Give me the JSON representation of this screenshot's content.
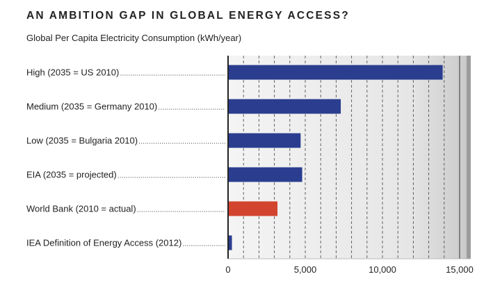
{
  "header": {
    "title": "AN AMBITION GAP IN GLOBAL ENERGY ACCESS?",
    "subtitle": "Global Per Capita Electricity Consumption (kWh/year)"
  },
  "colors": {
    "bar_default": "#2a3d8f",
    "bar_highlight": "#d2442e",
    "panel_bg": "#dcdcdc",
    "gridline": "#555555"
  },
  "chart_data": {
    "type": "bar",
    "orientation": "horizontal",
    "title": "AN AMBITION GAP IN GLOBAL ENERGY ACCESS?",
    "subtitle": "Global Per Capita Electricity Consumption (kWh/year)",
    "categories": [
      "High (2035 = US 2010)",
      "Medium (2035 = Germany 2010)",
      "Low (2035 = Bulgaria 2010)",
      "EIA (2035 = projected)",
      "World Bank (2010 = actual)",
      "IEA Definition of Energy Access (2012)"
    ],
    "values": [
      13900,
      7300,
      4700,
      4800,
      3200,
      250
    ],
    "highlight_index": 4,
    "xlim": [
      0,
      15000
    ],
    "xticks": [
      0,
      5000,
      10000,
      15000
    ],
    "xtick_labels": [
      "0",
      "5,000",
      "10,000",
      "15,000"
    ],
    "minor_grid_step": 1000,
    "grid": true
  }
}
